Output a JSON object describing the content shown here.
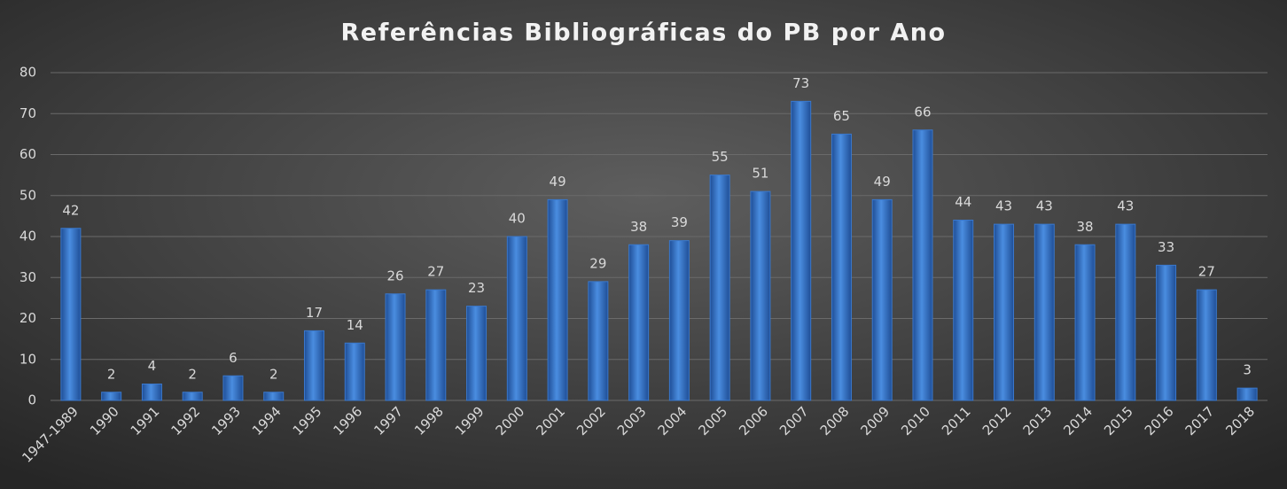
{
  "chart_data": {
    "type": "bar",
    "title": "Referências Bibliográficas do PB por Ano",
    "categories": [
      "1947-1989",
      "1990",
      "1991",
      "1992",
      "1993",
      "1994",
      "1995",
      "1996",
      "1997",
      "1998",
      "1999",
      "2000",
      "2001",
      "2002",
      "2003",
      "2004",
      "2005",
      "2006",
      "2007",
      "2008",
      "2009",
      "2010",
      "2011",
      "2012",
      "2013",
      "2014",
      "2015",
      "2016",
      "2017",
      "2018"
    ],
    "values": [
      42,
      2,
      4,
      2,
      6,
      2,
      17,
      14,
      26,
      27,
      23,
      40,
      49,
      29,
      38,
      39,
      55,
      51,
      73,
      65,
      49,
      66,
      44,
      43,
      43,
      38,
      43,
      33,
      27,
      3
    ],
    "color": "#3a78cc",
    "ylim": [
      0,
      80
    ],
    "yticks": [
      0,
      10,
      20,
      30,
      40,
      50,
      60,
      70,
      80
    ],
    "grid": true
  }
}
